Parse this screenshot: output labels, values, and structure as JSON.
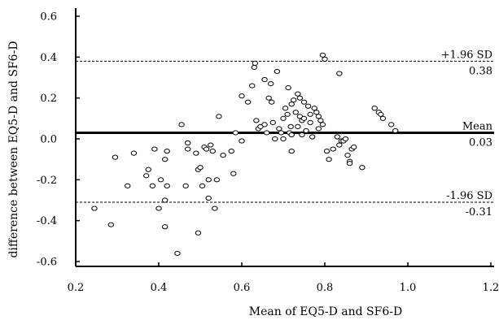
{
  "chart_data": {
    "type": "scatter",
    "title": "",
    "xlabel": "Mean of EQ5-D and SF6-D",
    "ylabel": "difference between EQ5-D and SF6-D",
    "xlim": [
      0.2,
      1.2
    ],
    "ylim": [
      -0.6,
      0.6
    ],
    "xticks": [
      0.2,
      0.4,
      0.6,
      0.8,
      1.0,
      1.2
    ],
    "xtick_labels": [
      "0.2",
      "0.4",
      "0.6",
      "0.8",
      "1.0",
      "1.2"
    ],
    "yticks": [
      -0.6,
      -0.4,
      -0.2,
      0.0,
      0.2,
      0.4,
      0.6
    ],
    "ytick_labels": [
      "-0.6",
      "-0.4",
      "-0.2",
      "0.0",
      "0.2",
      "0.4",
      "0.6"
    ],
    "grid": false,
    "reference_lines": [
      {
        "name": "+1.96 SD",
        "value": 0.38,
        "value_label": "0.38",
        "style": "dashed"
      },
      {
        "name": "Mean",
        "value": 0.03,
        "value_label": "0.03",
        "style": "solid"
      },
      {
        "name": "-1.96 SD",
        "value": -0.31,
        "value_label": "-0.31",
        "style": "dashed"
      }
    ],
    "points": [
      [
        0.245,
        -0.34
      ],
      [
        0.285,
        -0.42
      ],
      [
        0.295,
        -0.09
      ],
      [
        0.325,
        -0.23
      ],
      [
        0.34,
        -0.07
      ],
      [
        0.37,
        -0.18
      ],
      [
        0.375,
        -0.15
      ],
      [
        0.385,
        -0.23
      ],
      [
        0.39,
        -0.05
      ],
      [
        0.4,
        -0.34
      ],
      [
        0.405,
        -0.2
      ],
      [
        0.415,
        -0.3
      ],
      [
        0.415,
        -0.43
      ],
      [
        0.415,
        -0.1
      ],
      [
        0.42,
        -0.23
      ],
      [
        0.42,
        -0.06
      ],
      [
        0.445,
        -0.56
      ],
      [
        0.455,
        0.07
      ],
      [
        0.465,
        -0.23
      ],
      [
        0.47,
        -0.02
      ],
      [
        0.47,
        -0.05
      ],
      [
        0.49,
        -0.07
      ],
      [
        0.495,
        -0.46
      ],
      [
        0.495,
        -0.15
      ],
      [
        0.5,
        -0.14
      ],
      [
        0.505,
        -0.23
      ],
      [
        0.51,
        -0.04
      ],
      [
        0.515,
        -0.05
      ],
      [
        0.52,
        -0.29
      ],
      [
        0.52,
        -0.2
      ],
      [
        0.525,
        -0.03
      ],
      [
        0.53,
        -0.06
      ],
      [
        0.535,
        -0.34
      ],
      [
        0.54,
        -0.2
      ],
      [
        0.545,
        0.11
      ],
      [
        0.555,
        -0.08
      ],
      [
        0.575,
        -0.06
      ],
      [
        0.58,
        -0.17
      ],
      [
        0.585,
        0.03
      ],
      [
        0.6,
        0.21
      ],
      [
        0.6,
        -0.01
      ],
      [
        0.615,
        0.18
      ],
      [
        0.625,
        0.26
      ],
      [
        0.63,
        0.35
      ],
      [
        0.632,
        0.37
      ],
      [
        0.635,
        0.09
      ],
      [
        0.64,
        0.05
      ],
      [
        0.645,
        0.06
      ],
      [
        0.655,
        0.07
      ],
      [
        0.655,
        0.29
      ],
      [
        0.66,
        0.03
      ],
      [
        0.665,
        0.2
      ],
      [
        0.67,
        0.27
      ],
      [
        0.672,
        0.18
      ],
      [
        0.675,
        0.08
      ],
      [
        0.68,
        0.0
      ],
      [
        0.685,
        0.33
      ],
      [
        0.69,
        0.05
      ],
      [
        0.695,
        0.03
      ],
      [
        0.7,
        0.0
      ],
      [
        0.7,
        0.1
      ],
      [
        0.705,
        0.15
      ],
      [
        0.71,
        0.12
      ],
      [
        0.712,
        0.25
      ],
      [
        0.715,
        0.03
      ],
      [
        0.718,
        0.06
      ],
      [
        0.72,
        0.17
      ],
      [
        0.72,
        0.02
      ],
      [
        0.72,
        -0.06
      ],
      [
        0.725,
        0.19
      ],
      [
        0.73,
        0.13
      ],
      [
        0.735,
        0.06
      ],
      [
        0.735,
        0.22
      ],
      [
        0.74,
        0.11
      ],
      [
        0.74,
        0.2
      ],
      [
        0.745,
        0.09
      ],
      [
        0.745,
        0.02
      ],
      [
        0.75,
        0.18
      ],
      [
        0.75,
        0.1
      ],
      [
        0.755,
        0.04
      ],
      [
        0.76,
        0.16
      ],
      [
        0.765,
        0.12
      ],
      [
        0.765,
        0.08
      ],
      [
        0.77,
        0.01
      ],
      [
        0.775,
        0.15
      ],
      [
        0.78,
        0.13
      ],
      [
        0.785,
        0.05
      ],
      [
        0.785,
        0.11
      ],
      [
        0.79,
        0.09
      ],
      [
        0.795,
        0.07
      ],
      [
        0.795,
        0.41
      ],
      [
        0.8,
        0.39
      ],
      [
        0.805,
        -0.06
      ],
      [
        0.81,
        -0.1
      ],
      [
        0.82,
        -0.05
      ],
      [
        0.83,
        0.01
      ],
      [
        0.835,
        0.32
      ],
      [
        0.835,
        -0.03
      ],
      [
        0.84,
        -0.01
      ],
      [
        0.845,
        -0.01
      ],
      [
        0.85,
        0.0
      ],
      [
        0.855,
        -0.08
      ],
      [
        0.86,
        -0.11
      ],
      [
        0.86,
        -0.12
      ],
      [
        0.865,
        -0.05
      ],
      [
        0.87,
        -0.04
      ],
      [
        0.89,
        -0.14
      ],
      [
        0.92,
        0.15
      ],
      [
        0.93,
        0.13
      ],
      [
        0.935,
        0.12
      ],
      [
        0.94,
        0.1
      ],
      [
        0.96,
        0.07
      ],
      [
        0.97,
        0.04
      ]
    ]
  }
}
